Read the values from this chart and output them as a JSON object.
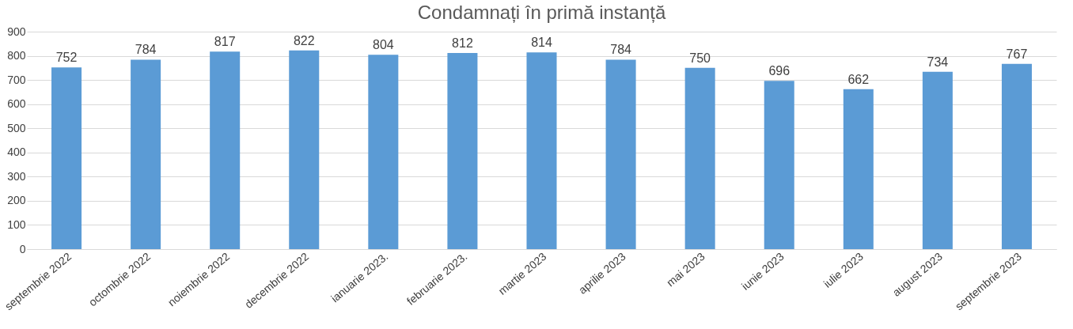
{
  "chart_data": {
    "type": "bar",
    "title": "Condamnați în primă instanță",
    "categories": [
      "septembrie 2022",
      "octombrie 2022",
      "noiembrie 2022",
      "decembrie 2022",
      "ianuarie 2023.",
      "februarie 2023.",
      "martie 2023",
      "aprilie 2023",
      "mai 2023",
      "iunie 2023",
      "iulie 2023",
      "august 2023",
      "septembrie 2023"
    ],
    "values": [
      752,
      784,
      817,
      822,
      804,
      812,
      814,
      784,
      750,
      696,
      662,
      734,
      767
    ],
    "color": "#5b9bd5",
    "ylim": [
      0,
      900
    ],
    "yticks": [
      0,
      100,
      200,
      300,
      400,
      500,
      600,
      700,
      800,
      900
    ],
    "grid": "y",
    "data_labels": true
  }
}
